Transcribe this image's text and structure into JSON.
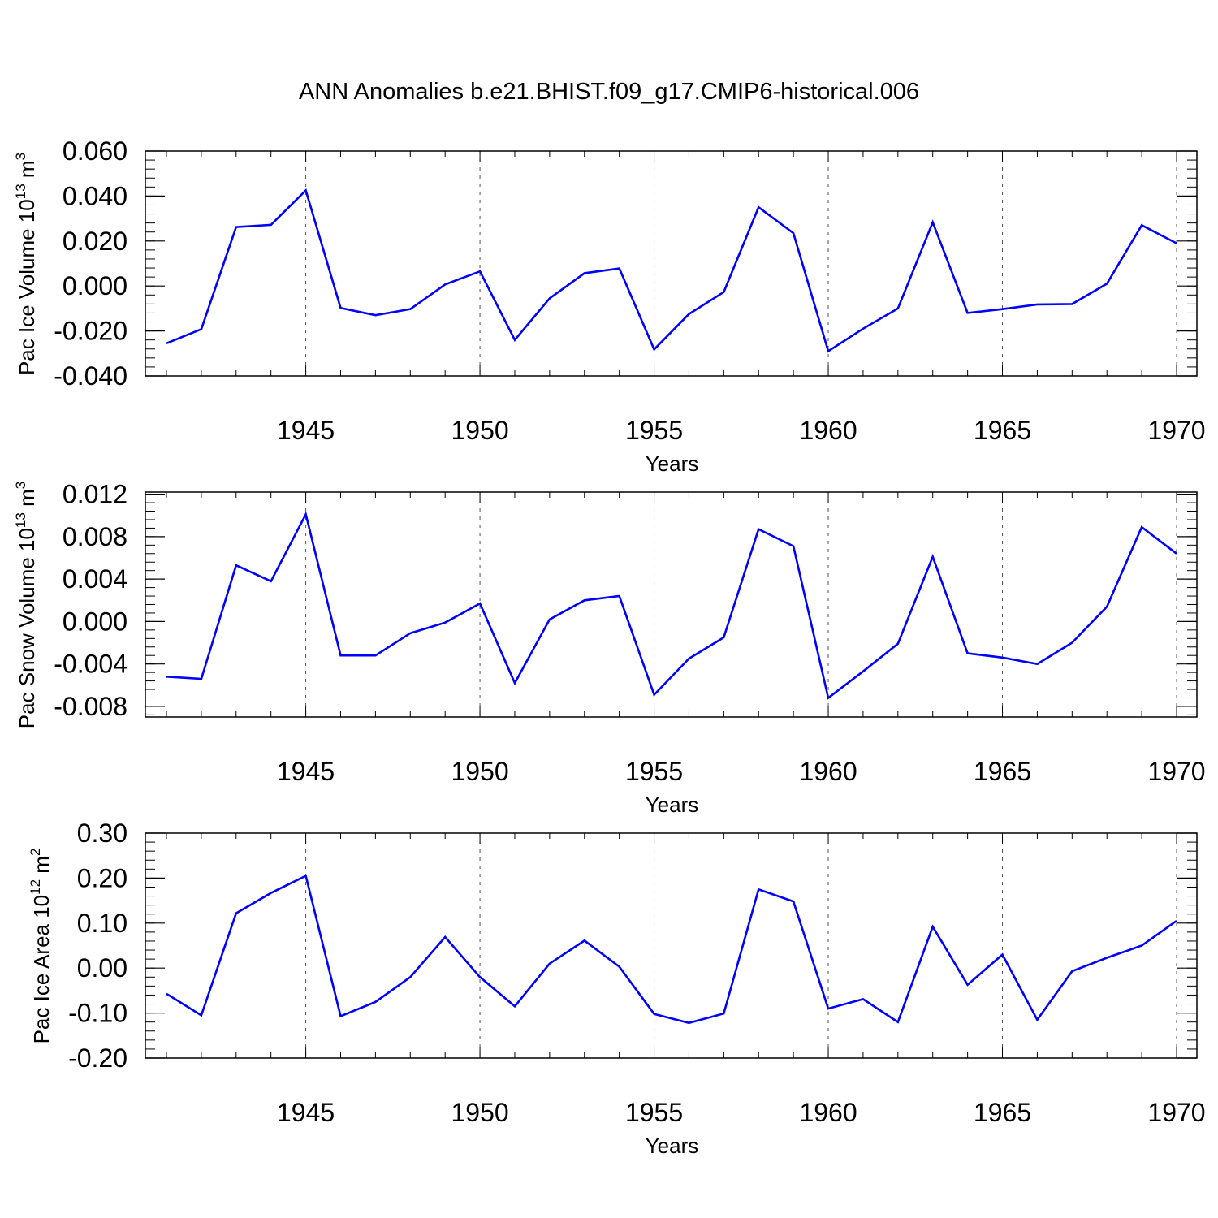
{
  "title": "ANN Anomalies b.e21.BHIST.f09_g17.CMIP6-historical.006",
  "colors": {
    "line": "#0000ff",
    "axis": "#000000",
    "grid": "#555555"
  },
  "chart_data": [
    {
      "type": "line",
      "title": "ANN Anomalies b.e21.BHIST.f09_g17.CMIP6-historical.006",
      "xlabel": "Years",
      "ylabel_main": "Pac Ice Volume 10",
      "ylabel_exp": "13",
      "ylabel_unit": "m",
      "ylabel_unit_exp": "3",
      "xlim": [
        1941,
        1970
      ],
      "ylim": [
        -0.04,
        0.06
      ],
      "yticks": [
        -0.04,
        -0.02,
        0.0,
        0.02,
        0.04,
        0.06
      ],
      "ytick_labels": [
        "-0.040",
        "-0.020",
        "0.000",
        "0.020",
        "0.040",
        "0.060"
      ],
      "xticks": [
        1945,
        1950,
        1955,
        1960,
        1965,
        1970
      ],
      "xtick_labels": [
        "1945",
        "1950",
        "1955",
        "1960",
        "1965",
        "1970"
      ],
      "grid": "vertical dashed at major x ticks",
      "x": [
        1941,
        1942,
        1943,
        1944,
        1945,
        1946,
        1947,
        1948,
        1949,
        1950,
        1951,
        1952,
        1953,
        1954,
        1955,
        1956,
        1957,
        1958,
        1959,
        1960,
        1961,
        1962,
        1963,
        1964,
        1965,
        1966,
        1967,
        1968,
        1969,
        1970
      ],
      "values": [
        -0.0255,
        -0.0192,
        0.0262,
        0.0272,
        0.0425,
        -0.0098,
        -0.013,
        -0.0103,
        0.0007,
        0.0065,
        -0.024,
        -0.0055,
        0.0057,
        0.0078,
        -0.0282,
        -0.0125,
        -0.0027,
        0.035,
        0.0235,
        -0.029,
        -0.019,
        -0.01,
        0.0283,
        -0.012,
        -0.0103,
        -0.0082,
        -0.008,
        0.001,
        0.027,
        0.019
      ]
    },
    {
      "type": "line",
      "xlabel": "Years",
      "ylabel_main": "Pac Snow Volume 10",
      "ylabel_exp": "13",
      "ylabel_unit": "m",
      "ylabel_unit_exp": "3",
      "xlim": [
        1941,
        1970
      ],
      "ylim": [
        -0.009,
        0.0122
      ],
      "yticks": [
        -0.008,
        -0.004,
        0.0,
        0.004,
        0.008,
        0.012
      ],
      "ytick_labels": [
        "-0.008",
        "-0.004",
        "0.000",
        "0.004",
        "0.008",
        "0.012"
      ],
      "xticks": [
        1945,
        1950,
        1955,
        1960,
        1965,
        1970
      ],
      "xtick_labels": [
        "1945",
        "1950",
        "1955",
        "1960",
        "1965",
        "1970"
      ],
      "grid": "vertical dashed at major x ticks",
      "x": [
        1941,
        1942,
        1943,
        1944,
        1945,
        1946,
        1947,
        1948,
        1949,
        1950,
        1951,
        1952,
        1953,
        1954,
        1955,
        1956,
        1957,
        1958,
        1959,
        1960,
        1961,
        1962,
        1963,
        1964,
        1965,
        1966,
        1967,
        1968,
        1969,
        1970
      ],
      "values": [
        -0.0052,
        -0.0054,
        0.0053,
        0.0038,
        0.0101,
        -0.0032,
        -0.0032,
        -0.0011,
        -0.0001,
        0.0017,
        -0.0058,
        0.0002,
        0.002,
        0.0024,
        -0.0069,
        -0.0035,
        -0.0015,
        0.0087,
        0.0071,
        -0.0072,
        -0.0047,
        -0.0021,
        0.0061,
        -0.003,
        -0.0034,
        -0.004,
        -0.002,
        0.0014,
        0.0089,
        0.0064
      ]
    },
    {
      "type": "line",
      "xlabel": "Years",
      "ylabel_main": "Pac Ice Area 10",
      "ylabel_exp": "12",
      "ylabel_unit": "m",
      "ylabel_unit_exp": "2",
      "xlim": [
        1941,
        1970
      ],
      "ylim": [
        -0.2,
        0.3
      ],
      "yticks": [
        -0.2,
        -0.1,
        0.0,
        0.1,
        0.2,
        0.3
      ],
      "ytick_labels": [
        "-0.20",
        "-0.10",
        "0.00",
        "0.10",
        "0.20",
        "0.30"
      ],
      "xticks": [
        1945,
        1950,
        1955,
        1960,
        1965,
        1970
      ],
      "xtick_labels": [
        "1945",
        "1950",
        "1955",
        "1960",
        "1965",
        "1970"
      ],
      "grid": "vertical dashed at major x ticks",
      "x": [
        1941,
        1942,
        1943,
        1944,
        1945,
        1946,
        1947,
        1948,
        1949,
        1950,
        1951,
        1952,
        1953,
        1954,
        1955,
        1956,
        1957,
        1958,
        1959,
        1960,
        1961,
        1962,
        1963,
        1964,
        1965,
        1966,
        1967,
        1968,
        1969,
        1970
      ],
      "values": [
        -0.057,
        -0.105,
        0.122,
        0.167,
        0.205,
        -0.107,
        -0.075,
        -0.02,
        0.069,
        -0.02,
        -0.085,
        0.01,
        0.061,
        0.003,
        -0.102,
        -0.122,
        -0.101,
        0.175,
        0.148,
        -0.09,
        -0.069,
        -0.12,
        0.092,
        -0.037,
        0.03,
        -0.115,
        -0.007,
        0.023,
        0.05,
        0.105
      ]
    }
  ]
}
